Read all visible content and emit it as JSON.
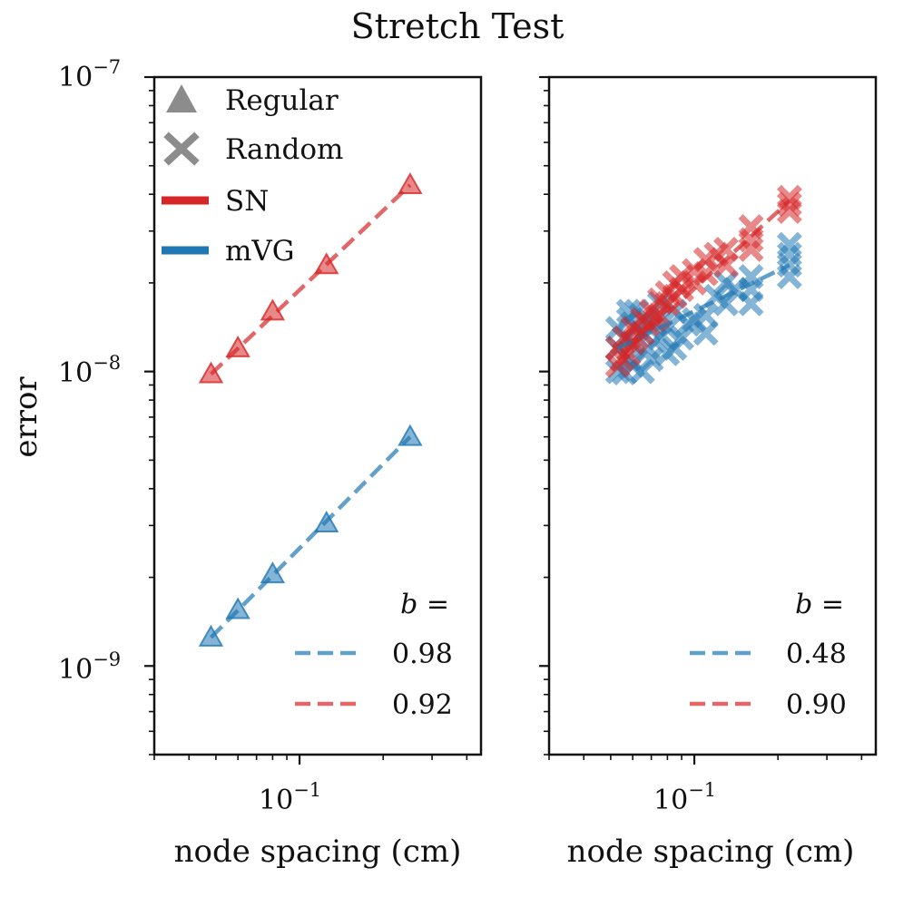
{
  "figure": {
    "title": "Stretch Test",
    "ylabel": "error",
    "colors": {
      "sn": "#d62728",
      "mvg": "#1f77b4",
      "marker_gray": "#8c8c8c",
      "axis": "#111111"
    }
  },
  "legend": {
    "items": [
      {
        "label": "Regular",
        "marker": "triangle-icon",
        "color": "#8c8c8c"
      },
      {
        "label": "Random",
        "marker": "cross-icon",
        "color": "#8c8c8c"
      },
      {
        "label": "SN",
        "marker": "line-icon",
        "color": "#d62728"
      },
      {
        "label": "mVG",
        "marker": "line-icon",
        "color": "#1f77b4"
      }
    ]
  },
  "chart_data": [
    {
      "type": "scatter",
      "panel": "left",
      "xlabel": "node spacing (cm)",
      "ylabel": "error",
      "xscale": "log",
      "yscale": "log",
      "xlim": [
        0.03,
        0.45
      ],
      "ylim": [
        5e-10,
        1e-07
      ],
      "x_tick_labels": [
        {
          "value": 0.1,
          "base": "10",
          "exp": "−1"
        }
      ],
      "y_tick_labels": [
        {
          "value": 1e-07,
          "base": "10",
          "exp": "−7"
        },
        {
          "value": 1e-08,
          "base": "10",
          "exp": "−8"
        },
        {
          "value": 1e-09,
          "base": "10",
          "exp": "−9"
        }
      ],
      "fit_legend": {
        "title": "b =",
        "entries": [
          {
            "label": "0.98",
            "series": "mVG"
          },
          {
            "label": "0.92",
            "series": "SN"
          }
        ]
      },
      "series": [
        {
          "name": "SN",
          "marker": "triangle",
          "color": "#d62728",
          "x": [
            0.048,
            0.06,
            0.08,
            0.125,
            0.25
          ],
          "y": [
            9.8e-09,
            1.2e-08,
            1.6e-08,
            2.3e-08,
            4.3e-08
          ],
          "fit": {
            "b": 0.92,
            "x": [
              0.048,
              0.25
            ],
            "y": [
              9.8e-09,
              4.3e-08
            ]
          }
        },
        {
          "name": "mVG",
          "marker": "triangle",
          "color": "#1f77b4",
          "x": [
            0.048,
            0.06,
            0.08,
            0.125,
            0.25
          ],
          "y": [
            1.25e-09,
            1.55e-09,
            2.05e-09,
            3.05e-09,
            6e-09
          ],
          "fit": {
            "b": 0.98,
            "x": [
              0.048,
              0.25
            ],
            "y": [
              1.25e-09,
              6e-09
            ]
          }
        }
      ]
    },
    {
      "type": "scatter",
      "panel": "right",
      "xlabel": "node spacing (cm)",
      "xscale": "log",
      "yscale": "log",
      "xlim": [
        0.03,
        0.45
      ],
      "ylim": [
        5e-10,
        1e-07
      ],
      "x_tick_labels": [
        {
          "value": 0.1,
          "base": "10",
          "exp": "−1"
        }
      ],
      "fit_legend": {
        "title": "b =",
        "entries": [
          {
            "label": "0.48",
            "series": "mVG"
          },
          {
            "label": "0.90",
            "series": "SN"
          }
        ]
      },
      "series": [
        {
          "name": "mVG",
          "marker": "cross",
          "color": "#1f77b4",
          "x": [
            0.053,
            0.053,
            0.053,
            0.056,
            0.056,
            0.058,
            0.058,
            0.058,
            0.06,
            0.06,
            0.062,
            0.062,
            0.065,
            0.065,
            0.068,
            0.068,
            0.07,
            0.072,
            0.075,
            0.075,
            0.08,
            0.08,
            0.085,
            0.085,
            0.09,
            0.095,
            0.1,
            0.11,
            0.11,
            0.12,
            0.13,
            0.13,
            0.14,
            0.16,
            0.16,
            0.16,
            0.22,
            0.22,
            0.22,
            0.22
          ],
          "y": [
            1e-08,
            1.2e-08,
            1.4e-08,
            9.9e-09,
            1.3e-08,
            1.1e-08,
            1.5e-08,
            1.6e-08,
            1.05e-08,
            1.25e-08,
            1.4e-08,
            1.6e-08,
            1e-08,
            1.35e-08,
            1.2e-08,
            1.5e-08,
            1.1e-08,
            1.45e-08,
            1.3e-08,
            1.7e-08,
            1.15e-08,
            1.4e-08,
            1.2e-08,
            1.6e-08,
            1.3e-08,
            1.45e-08,
            1.5e-08,
            1.35e-08,
            1.55e-08,
            1.8e-08,
            1.7e-08,
            2e-08,
            1.9e-08,
            1.7e-08,
            1.9e-08,
            2.1e-08,
            2.1e-08,
            2.3e-08,
            2.5e-08,
            2.7e-08
          ],
          "fit": {
            "b": 0.48,
            "x": [
              0.053,
              0.22
            ],
            "y": [
              1.2e-08,
              2.3e-08
            ]
          }
        },
        {
          "name": "SN",
          "marker": "cross",
          "color": "#d62728",
          "x": [
            0.053,
            0.053,
            0.055,
            0.056,
            0.058,
            0.06,
            0.06,
            0.062,
            0.065,
            0.065,
            0.068,
            0.07,
            0.072,
            0.075,
            0.075,
            0.08,
            0.08,
            0.085,
            0.085,
            0.09,
            0.09,
            0.1,
            0.1,
            0.11,
            0.11,
            0.12,
            0.13,
            0.13,
            0.16,
            0.16,
            0.16,
            0.22,
            0.22,
            0.22
          ],
          "y": [
            1.05e-08,
            1.2e-08,
            1.1e-08,
            1.3e-08,
            1.15e-08,
            1.25e-08,
            1.4e-08,
            1.3e-08,
            1.35e-08,
            1.5e-08,
            1.45e-08,
            1.6e-08,
            1.5e-08,
            1.55e-08,
            1.75e-08,
            1.7e-08,
            1.85e-08,
            1.8e-08,
            2e-08,
            1.9e-08,
            2.1e-08,
            2e-08,
            2.2e-08,
            2.15e-08,
            2.4e-08,
            2.5e-08,
            2.3e-08,
            2.6e-08,
            2.6e-08,
            2.8e-08,
            3.1e-08,
            3.5e-08,
            3.7e-08,
            3.9e-08
          ],
          "fit": {
            "b": 0.9,
            "x": [
              0.053,
              0.22
            ],
            "y": [
              1.1e-08,
              3.8e-08
            ]
          }
        }
      ]
    }
  ]
}
